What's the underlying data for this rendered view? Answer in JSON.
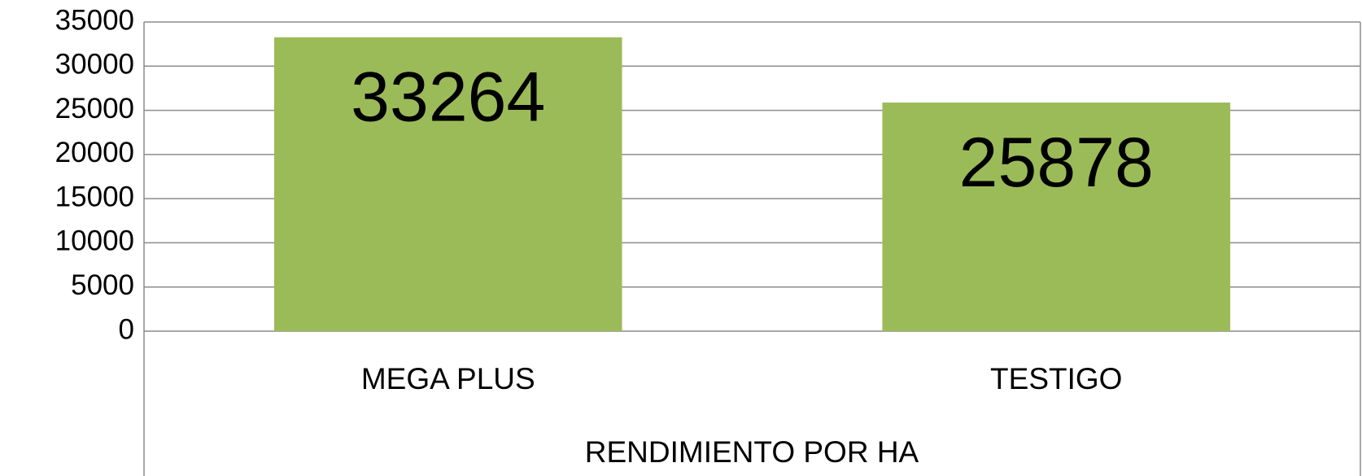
{
  "chart_data": {
    "type": "bar",
    "x_label": "RENDIMIENTO POR HA",
    "categories": [
      "MEGA PLUS",
      "TESTIGO"
    ],
    "values": [
      33264,
      25878
    ],
    "color": "#9bbb59",
    "ylim": [
      0,
      35000
    ],
    "yticks": [
      0,
      5000,
      10000,
      15000,
      20000,
      25000,
      30000,
      35000
    ],
    "grid": true
  }
}
